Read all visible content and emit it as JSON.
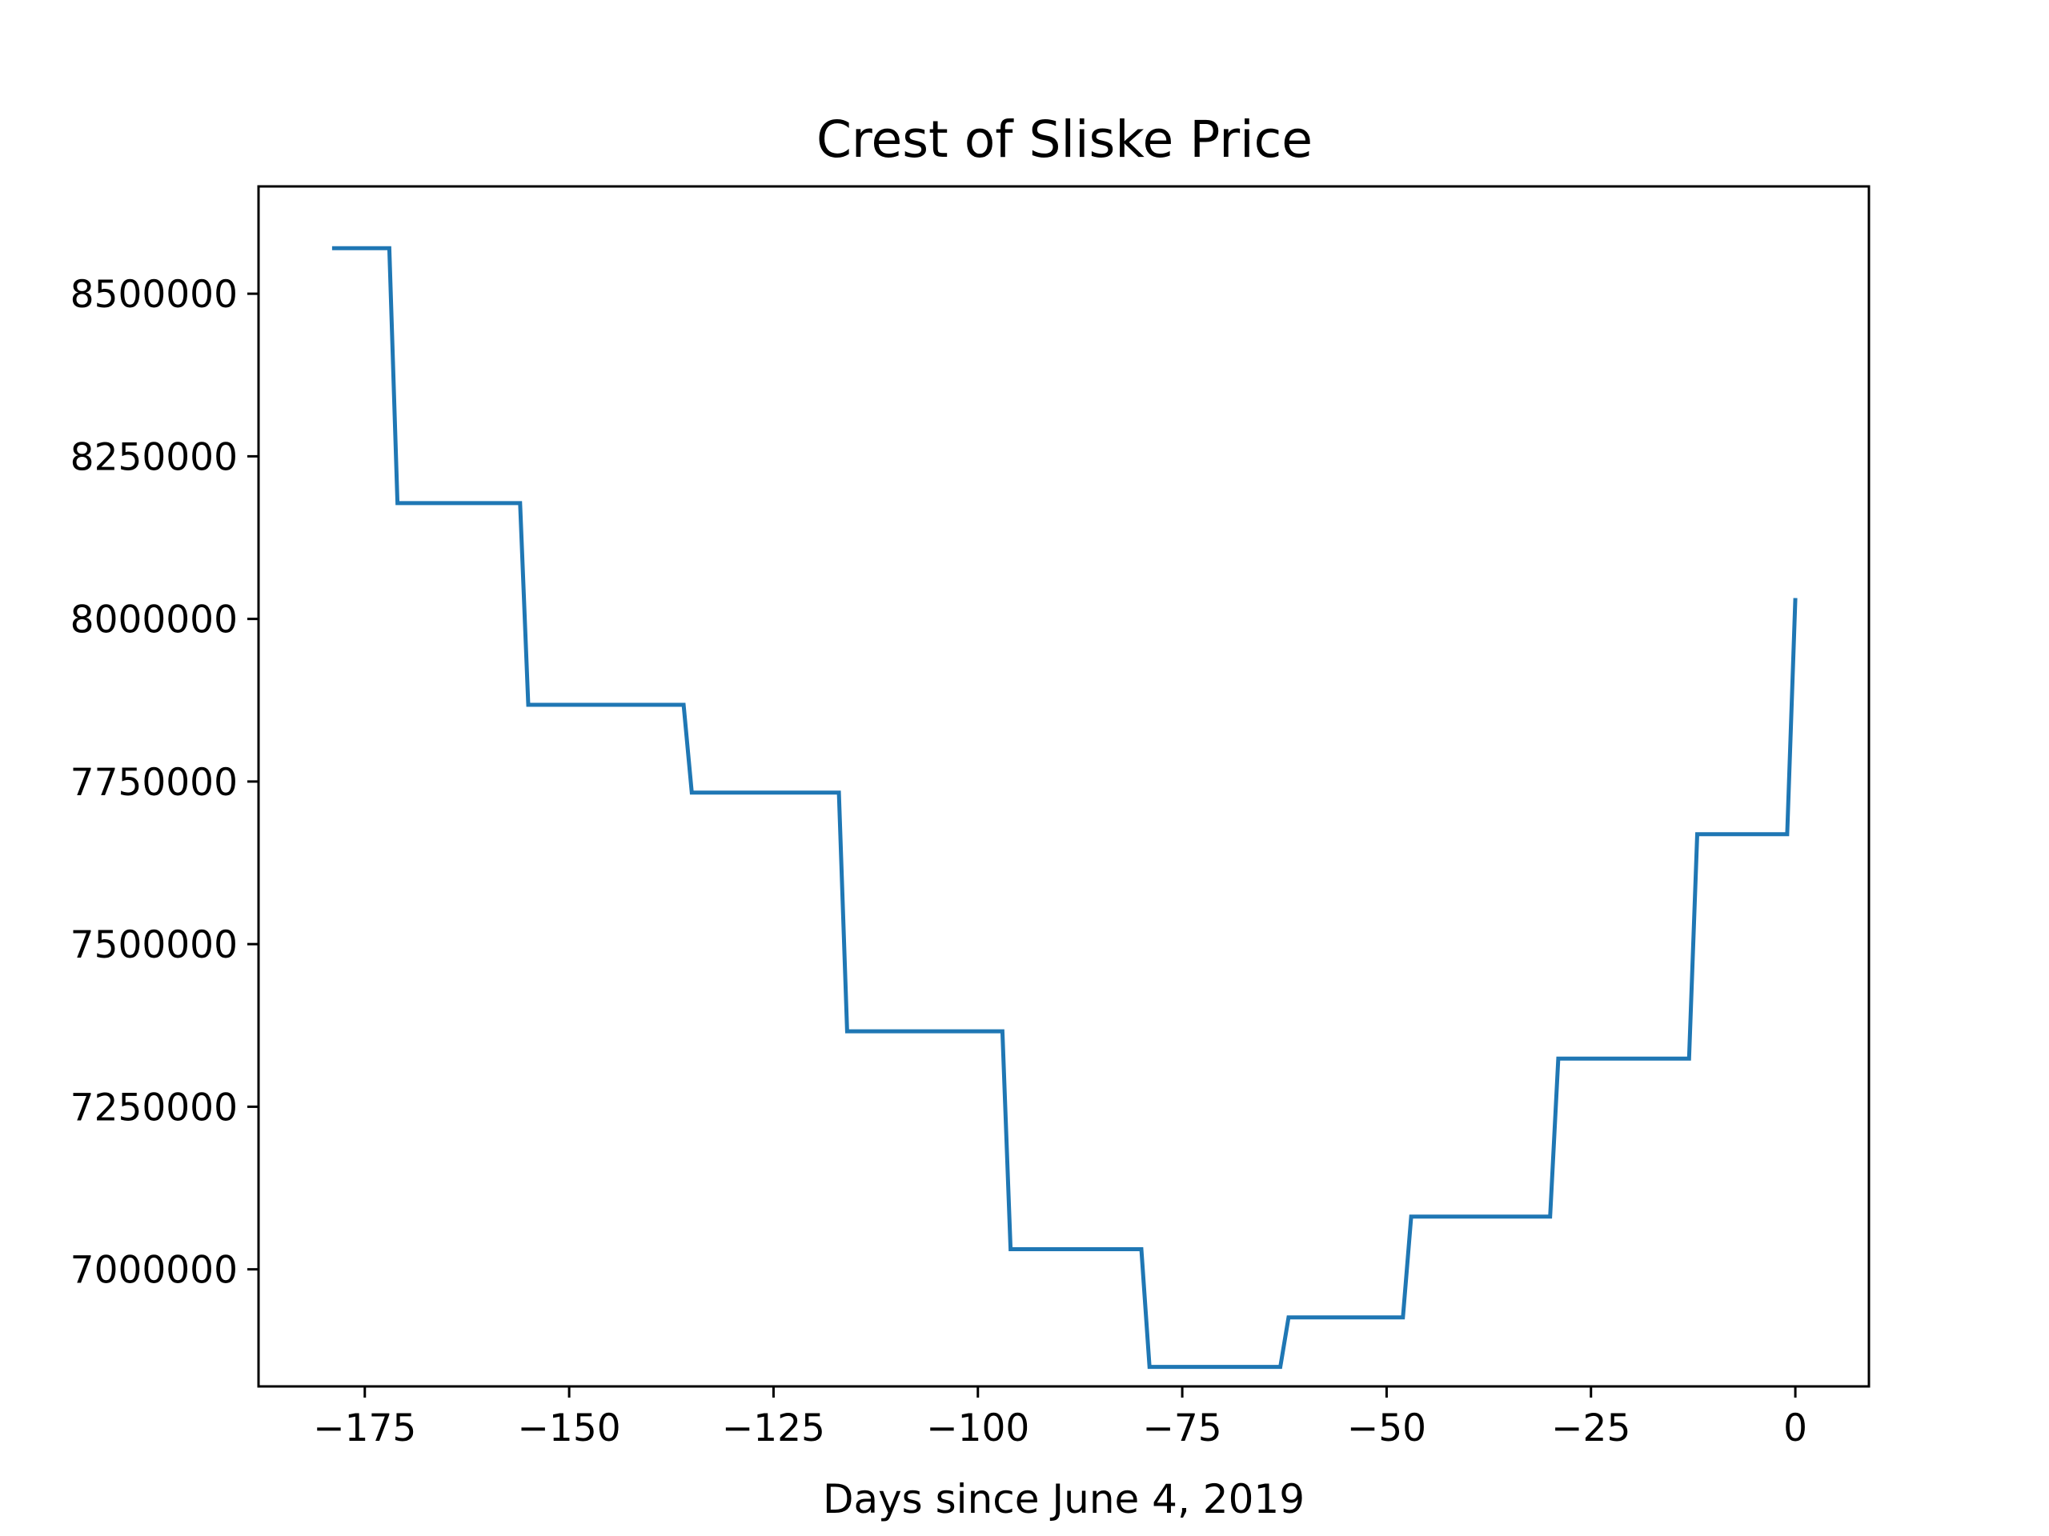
{
  "chart_data": {
    "type": "line",
    "title": "Crest of Sliske Price",
    "xlabel": "Days since June 4, 2019",
    "ylabel": "",
    "xlim": [
      -188,
      9
    ],
    "ylim": [
      6820000,
      8665000
    ],
    "x_ticks": [
      -175,
      -150,
      -125,
      -100,
      -75,
      -50,
      -25,
      0
    ],
    "x_tick_labels": [
      "−175",
      "−150",
      "−125",
      "−100",
      "−75",
      "−50",
      "−25",
      "0"
    ],
    "y_ticks": [
      7000000,
      7250000,
      7500000,
      7750000,
      8000000,
      8250000,
      8500000
    ],
    "y_tick_labels": [
      "7000000",
      "7250000",
      "7500000",
      "7750000",
      "8000000",
      "8250000",
      "8500000"
    ],
    "grid": false,
    "legend": "none",
    "series": [
      {
        "color": "#1f77b4",
        "x": [
          -179,
          -172,
          -171,
          -156,
          -155,
          -136,
          -135,
          -117,
          -116,
          -97,
          -96,
          -80,
          -79,
          -63,
          -62,
          -48,
          -47,
          -30,
          -29,
          -13,
          -12,
          -1,
          0
        ],
        "y": [
          8570000,
          8570000,
          8178000,
          8178000,
          7868000,
          7868000,
          7733000,
          7733000,
          7366000,
          7366000,
          7031000,
          7031000,
          6850000,
          6850000,
          6926000,
          6926000,
          7081000,
          7081000,
          7324000,
          7324000,
          7669000,
          7669000,
          8032000
        ]
      }
    ]
  }
}
